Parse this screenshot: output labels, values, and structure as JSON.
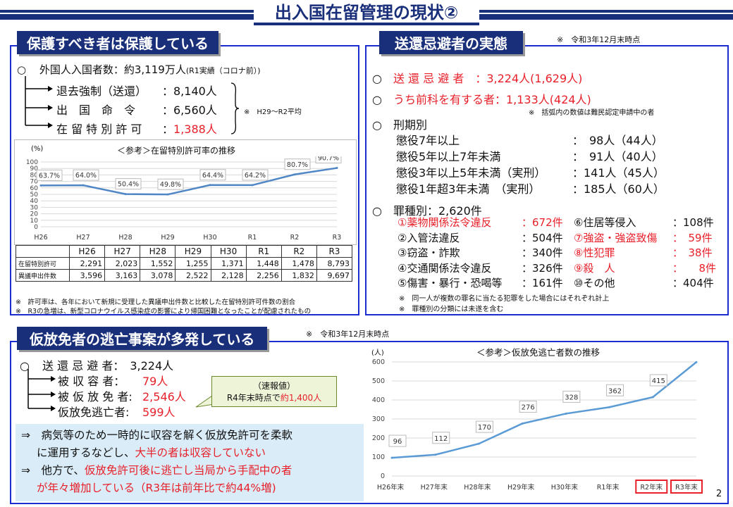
{
  "page_title": "出入国在留管理の現状②",
  "page_number": "2",
  "left_top": {
    "header": "保護すべき者は保護している",
    "bullet": "○",
    "foreigners_label": "外国人入国者数：約3,119万人",
    "foreigners_note": "(R1実績（コロナ前）)",
    "items": [
      {
        "label": "退去強制（送還）",
        "value": "：8,140人",
        "red": false
      },
      {
        "label": "出　国　命　令",
        "value": "：6,560人",
        "red": false
      },
      {
        "label": "在 留 特 別 許 可",
        "value": "：",
        "value_red": "1,388人",
        "red": true
      }
    ],
    "avg_note": "※　H29～R2平均",
    "chart_unit": "(%)",
    "chart_title": "＜参考＞在留特別許可率の推移",
    "footnotes": [
      "※　許可率は、各年において新規に受理した異議申出件数と比較した在留特別許可件数の割合",
      "※　R3の急増は、新型コロナウイルス感染症の影響により帰国困難となったことが配慮されたもの"
    ],
    "table": {
      "years": [
        "H26",
        "H27",
        "H28",
        "H29",
        "H30",
        "R1",
        "R2",
        "R3"
      ],
      "rows": [
        {
          "label": "在留特別許可",
          "values": [
            "2,291",
            "2,023",
            "1,552",
            "1,255",
            "1,371",
            "1,448",
            "1,478",
            "8,793"
          ]
        },
        {
          "label": "異議申出件数",
          "values": [
            "3,596",
            "3,163",
            "3,078",
            "2,522",
            "2,128",
            "2,256",
            "1,832",
            "9,697"
          ]
        }
      ]
    }
  },
  "right_top": {
    "header": "送還忌避者の実態",
    "as_of": "※　令和3年12月末時点",
    "line1_label": "送 還 忌 避 者　：3,224人(1,629人)",
    "line2_label": "うち前科を有する者：1,133人(424人)",
    "paren_note": "※　括弧内の数値は難民認定申請中の者",
    "sentence_title": "刑期別",
    "sentences": [
      {
        "label": "懲役7年以上",
        "value": "：　98人（44人）"
      },
      {
        "label": "懲役5年以上7年未満",
        "value": "：　91人（40人）"
      },
      {
        "label": "懲役3年以上5年未満（実刑）",
        "value": "：141人（45人）"
      },
      {
        "label": "懲役1年超3年未満　（実刑）",
        "value": "：185人（60人）"
      }
    ],
    "crime_title": "罪種別：2,620件",
    "crimes_left": [
      {
        "label": "①薬物関係法令違反",
        "value": "：672件",
        "red": true
      },
      {
        "label": "②入管法違反",
        "value": "：504件",
        "red": false
      },
      {
        "label": "③窃盗・詐欺",
        "value": "：340件",
        "red": false
      },
      {
        "label": "④交通関係法令違反",
        "value": "：326件",
        "red": false
      },
      {
        "label": "⑤傷害・暴行・恐喝等",
        "value": "：161件",
        "red": false
      }
    ],
    "crimes_right": [
      {
        "label": "⑥住居等侵入",
        "value": "：108件",
        "red": false
      },
      {
        "label": "⑦強盗・強盗致傷",
        "value": "：　59件",
        "red": true
      },
      {
        "label": "⑧性犯罪",
        "value": "：　38件",
        "red": true
      },
      {
        "label": "⑨殺　人",
        "value": "：　　8件",
        "red": true
      },
      {
        "label": "⑩その他",
        "value": "：404件",
        "red": false
      }
    ],
    "crime_notes": [
      "※　同一人が複数の罪名に当たる犯罪をした場合にはそれぞれ計上",
      "※　罪種別の分類には未遂を含む"
    ]
  },
  "bottom": {
    "header": "仮放免者の逃亡事案が多発している",
    "as_of": "※　令和3年12月末時点",
    "line0": "送 還 忌 避 者：　3,224人",
    "items": [
      {
        "label": "被 収 容 者：",
        "value": "79人"
      },
      {
        "label": "被 仮 放 免 者:",
        "value": "2,546人"
      },
      {
        "label": "仮放免逃亡者:",
        "value": "599人"
      }
    ],
    "callout_title": "（速報値）",
    "callout_text": "R4年末時点で",
    "callout_red": "約1,400人",
    "box_line1": "⇒　病気等のため一時的に収容を解く仮放免許可を柔軟",
    "box_line2a": "に運用するなどし、",
    "box_line2b": "大半の者は収容していない",
    "box_line3a": "⇒　他方で、",
    "box_line3b": "仮放免許可後に逃亡し当局から手配中の者",
    "box_line4": "が年々増加している（R3年は前年比で約44%増)",
    "chart_unit": "(人)",
    "chart_title": "＜参考＞仮放免逃亡者数の推移"
  },
  "chart_data": [
    {
      "type": "line",
      "title": "＜参考＞在留特別許可率の推移",
      "ylabel": "(%)",
      "categories": [
        "H26",
        "H27",
        "H28",
        "H29",
        "H30",
        "R1",
        "R2",
        "R3"
      ],
      "values": [
        63.7,
        64.0,
        50.4,
        49.8,
        64.4,
        64.2,
        80.7,
        90.7
      ],
      "data_labels": [
        "63.7%",
        "64.0%",
        "50.4%",
        "49.8%",
        "64.4%",
        "64.2%",
        "80.7%",
        "90.7%"
      ],
      "ylim": [
        0,
        100
      ],
      "yticks": [
        0,
        10,
        20,
        30,
        40,
        50,
        60,
        70,
        80,
        90,
        100
      ],
      "grid": true,
      "color": "#4f86c6"
    },
    {
      "type": "line",
      "title": "＜参考＞仮放免逃亡者数の推移",
      "ylabel": "(人)",
      "categories": [
        "H26年末",
        "H27年末",
        "H28年末",
        "H29年末",
        "H30年末",
        "R1年末",
        "R2年末",
        "R3年末"
      ],
      "values": [
        96,
        112,
        170,
        276,
        328,
        362,
        415,
        599
      ],
      "ylim": [
        0,
        600
      ],
      "yticks": [
        0,
        100,
        200,
        300,
        400,
        500,
        600
      ],
      "grid": true,
      "highlighted": [
        "R2年末",
        "R3年末"
      ],
      "color": "#5b9bd5"
    }
  ]
}
